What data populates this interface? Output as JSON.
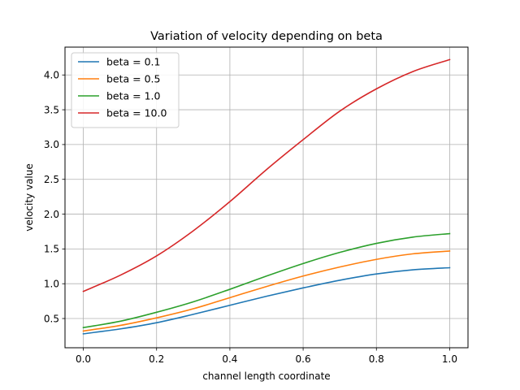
{
  "chart_data": {
    "type": "line",
    "title": "Variation of velocity depending on beta",
    "xlabel": "channel length coordinate",
    "ylabel": "velocity value",
    "xlim": [
      -0.05,
      1.05
    ],
    "ylim": [
      0.08,
      4.4
    ],
    "xticks": [
      0.0,
      0.2,
      0.4,
      0.6,
      0.8,
      1.0
    ],
    "xtick_labels": [
      "0.0",
      "0.2",
      "0.4",
      "0.6",
      "0.8",
      "1.0"
    ],
    "yticks": [
      0.5,
      1.0,
      1.5,
      2.0,
      2.5,
      3.0,
      3.5,
      4.0
    ],
    "ytick_labels": [
      "0.5",
      "1.0",
      "1.5",
      "2.0",
      "2.5",
      "3.0",
      "3.5",
      "4.0"
    ],
    "grid": true,
    "legend_position": "top-left",
    "x": [
      0.0,
      0.1,
      0.2,
      0.3,
      0.4,
      0.5,
      0.6,
      0.7,
      0.8,
      0.9,
      1.0
    ],
    "series": [
      {
        "name": "beta = 0.1",
        "color": "#1f77b4",
        "values": [
          0.28,
          0.35,
          0.44,
          0.56,
          0.69,
          0.82,
          0.94,
          1.05,
          1.14,
          1.2,
          1.23
        ]
      },
      {
        "name": "beta = 0.5",
        "color": "#ff7f0e",
        "values": [
          0.32,
          0.4,
          0.51,
          0.64,
          0.8,
          0.96,
          1.11,
          1.24,
          1.35,
          1.43,
          1.47
        ]
      },
      {
        "name": "beta = 1.0",
        "color": "#2ca02c",
        "values": [
          0.37,
          0.46,
          0.59,
          0.74,
          0.92,
          1.11,
          1.29,
          1.45,
          1.58,
          1.67,
          1.72
        ]
      },
      {
        "name": "beta = 10.0",
        "color": "#d62728",
        "values": [
          0.89,
          1.12,
          1.4,
          1.76,
          2.18,
          2.64,
          3.07,
          3.48,
          3.8,
          4.05,
          4.22
        ]
      }
    ]
  }
}
